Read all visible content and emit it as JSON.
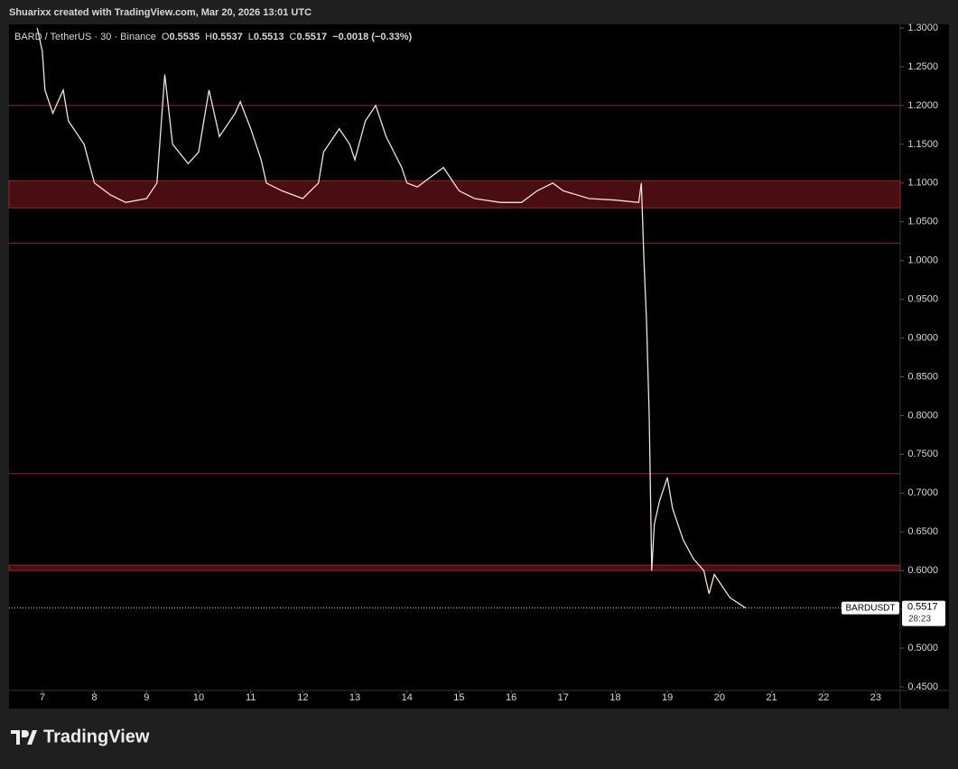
{
  "header": "Shuarixx created with TradingView.com, Mar 20, 2026 13:01 UTC",
  "legend": {
    "symbol": "BARD / TetherUS · 30 · Binance",
    "ohlc": [
      {
        "label": "O",
        "value": 0.5535
      },
      {
        "label": "H",
        "value": 0.5537
      },
      {
        "label": "L",
        "value": 0.5513
      },
      {
        "label": "C",
        "value": 0.5517
      }
    ],
    "change": "−0.0018 (−0.33%)"
  },
  "price_tag": {
    "symbol": "BARDUSDT",
    "price": 0.5517,
    "countdown": "28:23"
  },
  "footer": "TradingView",
  "chart_data": {
    "type": "line",
    "x": [
      6.9,
      7.0,
      7.05,
      7.2,
      7.4,
      7.5,
      7.8,
      8.0,
      8.3,
      8.6,
      9.0,
      9.2,
      9.35,
      9.5,
      9.8,
      10.0,
      10.2,
      10.4,
      10.7,
      10.8,
      11.0,
      11.2,
      11.3,
      11.6,
      12.0,
      12.3,
      12.4,
      12.7,
      12.9,
      13.0,
      13.2,
      13.4,
      13.6,
      13.9,
      14.0,
      14.2,
      14.5,
      14.7,
      15.0,
      15.3,
      15.8,
      16.2,
      16.5,
      16.8,
      17.0,
      17.5,
      18.0,
      18.45,
      18.5,
      18.55,
      18.6,
      18.65,
      18.7,
      18.75,
      18.85,
      19.0,
      19.1,
      19.3,
      19.5,
      19.7,
      19.8,
      19.9,
      20.0,
      20.2,
      20.5
    ],
    "series": [
      {
        "name": "BARDUSDT",
        "color": "#f3e3cf",
        "values": [
          1.3,
          1.27,
          1.22,
          1.19,
          1.22,
          1.18,
          1.15,
          1.1,
          1.085,
          1.075,
          1.08,
          1.1,
          1.24,
          1.15,
          1.125,
          1.14,
          1.22,
          1.16,
          1.19,
          1.205,
          1.17,
          1.13,
          1.1,
          1.09,
          1.08,
          1.1,
          1.14,
          1.17,
          1.15,
          1.13,
          1.18,
          1.2,
          1.16,
          1.12,
          1.1,
          1.095,
          1.11,
          1.12,
          1.09,
          1.08,
          1.075,
          1.075,
          1.09,
          1.1,
          1.09,
          1.08,
          1.078,
          1.075,
          1.1,
          1.0,
          0.92,
          0.8,
          0.6,
          0.66,
          0.69,
          0.72,
          0.68,
          0.64,
          0.615,
          0.6,
          0.57,
          0.595,
          0.585,
          0.565,
          0.5517
        ]
      }
    ],
    "levels": [
      1.2,
      1.0225,
      0.725
    ],
    "zones": [
      [
        1.068,
        1.103
      ],
      [
        0.6,
        0.607
      ]
    ],
    "xlim": [
      6.36,
      23.47
    ],
    "xticks": [
      7,
      8,
      9,
      10,
      11,
      12,
      13,
      14,
      15,
      16,
      17,
      18,
      19,
      20,
      21,
      22,
      23
    ],
    "ylim": [
      0.4453,
      1.3047
    ],
    "yticks": [
      {
        "value": 1.3,
        "label": "1.3000"
      },
      {
        "value": 1.25,
        "label": "1.2500"
      },
      {
        "value": 1.2,
        "label": "1.2000"
      },
      {
        "value": 1.15,
        "label": "1.1500"
      },
      {
        "value": 1.1,
        "label": "1.1000"
      },
      {
        "value": 1.05,
        "label": "1.0500"
      },
      {
        "value": 1.0,
        "label": "1.0000"
      },
      {
        "value": 0.95,
        "label": "0.9500"
      },
      {
        "value": 0.9,
        "label": "0.9000"
      },
      {
        "value": 0.85,
        "label": "0.8500"
      },
      {
        "value": 0.8,
        "label": "0.8000"
      },
      {
        "value": 0.75,
        "label": "0.7500"
      },
      {
        "value": 0.7,
        "label": "0.7000"
      },
      {
        "value": 0.65,
        "label": "0.6500"
      },
      {
        "value": 0.6,
        "label": "0.6000"
      },
      {
        "value": 0.55,
        "label": "0.5500"
      },
      {
        "value": 0.5,
        "label": "0.5000"
      },
      {
        "value": 0.45,
        "label": "0.4500"
      }
    ],
    "grid": false
  }
}
